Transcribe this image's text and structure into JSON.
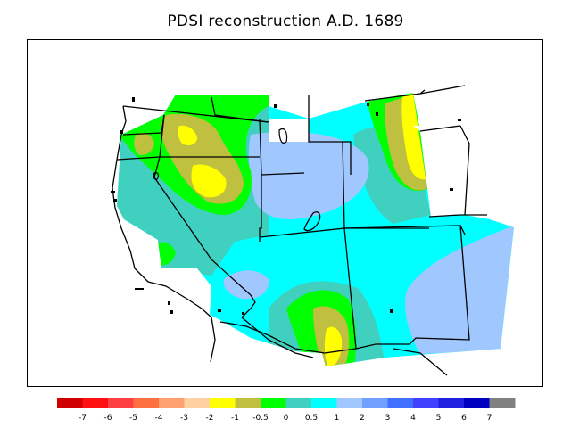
{
  "title": "PDSI reconstruction A.D. 1689",
  "colors": {
    "wet_light_blue": "#a0c8ff",
    "cyan": "#00ffff",
    "teal": "#40d0c0",
    "green": "#00ff00",
    "olive": "#c0c040",
    "yellow": "#ffff00",
    "background": "#ffffff",
    "outline": "#000000"
  },
  "legend": {
    "colors": [
      "#d00000",
      "#ff1010",
      "#ff4040",
      "#ff7040",
      "#ffa070",
      "#ffd0a0",
      "#ffff00",
      "#c0c040",
      "#00ff00",
      "#40d0c0",
      "#00ffff",
      "#a0c8ff",
      "#70a0ff",
      "#4070ff",
      "#4040ff",
      "#2020e0",
      "#0000c0",
      "#808080"
    ],
    "labels": [
      "-7",
      "-6",
      "-5",
      "-4",
      "-3",
      "-2",
      "-1",
      "-0.5",
      "0",
      "0.5",
      "1",
      "2",
      "3",
      "4",
      "5",
      "6",
      "7"
    ]
  }
}
